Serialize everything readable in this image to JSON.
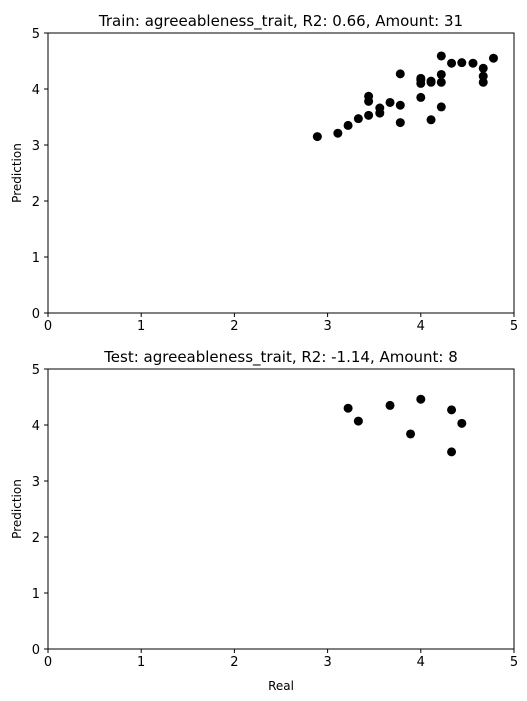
{
  "chart_data": [
    {
      "type": "scatter",
      "title": "Train: agreeableness_trait, R2: 0.66, Amount: 31",
      "xlabel": "",
      "ylabel": "Prediction",
      "xlim": [
        0,
        5
      ],
      "ylim": [
        0,
        5
      ],
      "xticks": [
        "0",
        "1",
        "2",
        "3",
        "4",
        "5"
      ],
      "yticks": [
        "0",
        "1",
        "2",
        "3",
        "4",
        "5"
      ],
      "grid": false,
      "marker_color": "#000000",
      "points": [
        {
          "x": 2.89,
          "y": 3.15
        },
        {
          "x": 3.11,
          "y": 3.21
        },
        {
          "x": 3.22,
          "y": 3.35
        },
        {
          "x": 3.33,
          "y": 3.47
        },
        {
          "x": 3.44,
          "y": 3.53
        },
        {
          "x": 3.44,
          "y": 3.78
        },
        {
          "x": 3.44,
          "y": 3.87
        },
        {
          "x": 3.56,
          "y": 3.57
        },
        {
          "x": 3.56,
          "y": 3.66
        },
        {
          "x": 3.67,
          "y": 3.76
        },
        {
          "x": 3.78,
          "y": 3.4
        },
        {
          "x": 3.78,
          "y": 3.71
        },
        {
          "x": 3.78,
          "y": 4.27
        },
        {
          "x": 4.0,
          "y": 3.85
        },
        {
          "x": 4.0,
          "y": 4.1
        },
        {
          "x": 4.0,
          "y": 4.19
        },
        {
          "x": 4.11,
          "y": 3.45
        },
        {
          "x": 4.11,
          "y": 4.12
        },
        {
          "x": 4.11,
          "y": 4.14
        },
        {
          "x": 4.22,
          "y": 3.68
        },
        {
          "x": 4.22,
          "y": 4.12
        },
        {
          "x": 4.22,
          "y": 4.26
        },
        {
          "x": 4.22,
          "y": 4.59
        },
        {
          "x": 4.33,
          "y": 4.46
        },
        {
          "x": 4.44,
          "y": 4.47
        },
        {
          "x": 4.56,
          "y": 4.46
        },
        {
          "x": 4.67,
          "y": 4.12
        },
        {
          "x": 4.67,
          "y": 4.23
        },
        {
          "x": 4.67,
          "y": 4.37
        },
        {
          "x": 4.78,
          "y": 4.55
        },
        {
          "x": 4.0,
          "y": 4.16
        }
      ]
    },
    {
      "type": "scatter",
      "title": "Test: agreeableness_trait, R2: -1.14, Amount: 8",
      "xlabel": "Real",
      "ylabel": "Prediction",
      "xlim": [
        0,
        5
      ],
      "ylim": [
        0,
        5
      ],
      "xticks": [
        "0",
        "1",
        "2",
        "3",
        "4",
        "5"
      ],
      "yticks": [
        "0",
        "1",
        "2",
        "3",
        "4",
        "5"
      ],
      "grid": false,
      "marker_color": "#000000",
      "points": [
        {
          "x": 3.22,
          "y": 4.3
        },
        {
          "x": 3.33,
          "y": 4.07
        },
        {
          "x": 3.67,
          "y": 4.35
        },
        {
          "x": 3.89,
          "y": 3.84
        },
        {
          "x": 4.0,
          "y": 4.46
        },
        {
          "x": 4.33,
          "y": 4.27
        },
        {
          "x": 4.33,
          "y": 3.52
        },
        {
          "x": 4.44,
          "y": 4.03
        }
      ]
    }
  ]
}
